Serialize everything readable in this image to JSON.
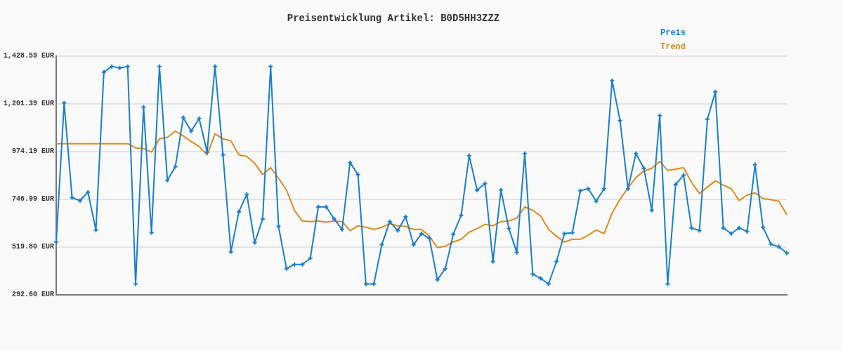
{
  "chart_data": {
    "type": "line",
    "title": "Preisentwicklung Artikel: B0D5HH3ZZZ",
    "categories": [
      null,
      null,
      null,
      null,
      null,
      null,
      null,
      null,
      null,
      null,
      null,
      null,
      null,
      null,
      null,
      null,
      null,
      null,
      null,
      null,
      null,
      null,
      null,
      null,
      null,
      null,
      null,
      null,
      null,
      null,
      null,
      null,
      null,
      null,
      null,
      null,
      null,
      null,
      null,
      null,
      null,
      null,
      null,
      null,
      null,
      null,
      null,
      null,
      null,
      null,
      null,
      null,
      null,
      null,
      null,
      null,
      null,
      null,
      null,
      null,
      null,
      null,
      null,
      null,
      null,
      null,
      null,
      null,
      null,
      null,
      null,
      null,
      null,
      null,
      null,
      null,
      null,
      null,
      null,
      null,
      null,
      null,
      null,
      null,
      null,
      null,
      null,
      null,
      null,
      null,
      null,
      null,
      null
    ],
    "series": [
      {
        "name": "Preis",
        "color": "#1a7fcf",
        "marker": "cross",
        "values": [
          543,
          1205,
          754,
          740,
          780,
          600,
          1352,
          1379,
          1372,
          1379,
          343,
          1185,
          587,
          1379,
          837,
          901,
          1135,
          1071,
          1131,
          971,
          1379,
          958,
          496,
          687,
          770,
          540,
          653,
          1379,
          617,
          416,
          436,
          436,
          466,
          710,
          710,
          653,
          603,
          921,
          864,
          343,
          343,
          530,
          640,
          597,
          663,
          530,
          583,
          560,
          363,
          416,
          580,
          670,
          954,
          790,
          821,
          450,
          790,
          607,
          493,
          964,
          390,
          370,
          343,
          450,
          583,
          587,
          787,
          797,
          737,
          797,
          1312,
          1121,
          797,
          964,
          894,
          694,
          1145,
          343,
          817,
          861,
          610,
          597,
          1128,
          1258,
          610,
          583,
          610,
          593,
          911,
          613,
          533,
          520,
          490
        ]
      },
      {
        "name": "Trend",
        "color": "#e08a1e",
        "marker": "none",
        "values": [
          1011,
          1011,
          1011,
          1011,
          1011,
          1011,
          1011,
          1011,
          1011,
          1011,
          991,
          988,
          971,
          1034,
          1041,
          1071,
          1048,
          1021,
          998,
          958,
          1058,
          1034,
          1024,
          958,
          951,
          917,
          864,
          897,
          847,
          790,
          694,
          643,
          640,
          643,
          637,
          643,
          640,
          597,
          620,
          613,
          603,
          613,
          630,
          620,
          617,
          603,
          603,
          570,
          516,
          523,
          543,
          556,
          590,
          607,
          627,
          620,
          640,
          643,
          657,
          710,
          694,
          667,
          603,
          570,
          543,
          556,
          556,
          576,
          600,
          583,
          680,
          747,
          800,
          850,
          880,
          894,
          927,
          884,
          890,
          897,
          827,
          774,
          804,
          834,
          814,
          797,
          740,
          767,
          777,
          750,
          744,
          737,
          673
        ]
      }
    ],
    "ylim": [
      292.6,
      1428.59
    ],
    "yticks": [
      {
        "value": 292.6,
        "label": "292.60 EUR"
      },
      {
        "value": 519.8,
        "label": "519.80 EUR"
      },
      {
        "value": 746.99,
        "label": "746.99 EUR"
      },
      {
        "value": 974.19,
        "label": "974.19 EUR"
      },
      {
        "value": 1201.39,
        "label": "1,201.39 EUR"
      },
      {
        "value": 1428.59,
        "label": "1,428.59 EUR"
      }
    ],
    "grid": "y",
    "legend": "top right"
  }
}
